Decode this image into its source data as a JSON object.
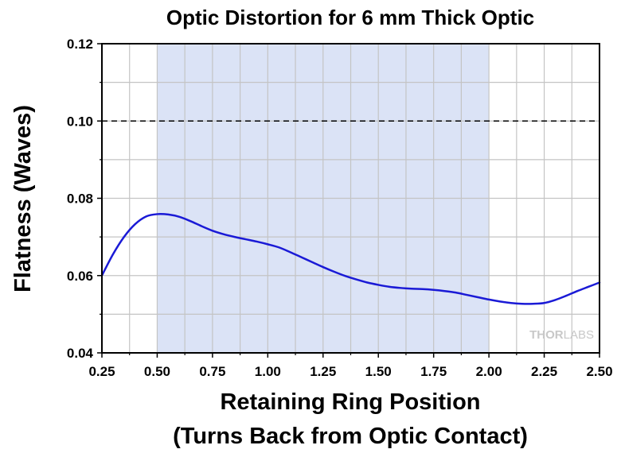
{
  "chart_data": {
    "type": "line",
    "title": "Optic Distortion for 6 mm Thick Optic",
    "xlabel_line1": "Retaining Ring Position",
    "xlabel_line2": "(Turns Back from Optic Contact)",
    "ylabel": "Flatness (Waves)",
    "xlim": [
      0.25,
      2.5
    ],
    "ylim": [
      0.04,
      0.12
    ],
    "x_ticks": [
      "0.25",
      "0.50",
      "0.75",
      "1.00",
      "1.25",
      "1.50",
      "1.75",
      "2.00",
      "2.25",
      "2.50"
    ],
    "y_ticks": [
      "0.04",
      "0.06",
      "0.08",
      "0.10",
      "0.12"
    ],
    "grid": true,
    "shaded_region": {
      "x_start": 0.5,
      "x_end": 2.0,
      "color": "#dbe3f6"
    },
    "reference_line": {
      "y": 0.1,
      "style": "dashed",
      "color": "#000000"
    },
    "series": [
      {
        "color": "#1a1ad6",
        "x": [
          0.25,
          0.3,
          0.35,
          0.4,
          0.45,
          0.5,
          0.55,
          0.6,
          0.65,
          0.7,
          0.75,
          0.8,
          0.85,
          0.9,
          0.95,
          1.0,
          1.05,
          1.1,
          1.15,
          1.2,
          1.25,
          1.3,
          1.35,
          1.4,
          1.45,
          1.5,
          1.55,
          1.6,
          1.65,
          1.7,
          1.75,
          1.8,
          1.85,
          1.9,
          1.95,
          2.0,
          2.05,
          2.1,
          2.15,
          2.2,
          2.25,
          2.3,
          2.35,
          2.4,
          2.45,
          2.5
        ],
        "y": [
          0.06,
          0.0655,
          0.07,
          0.0733,
          0.0753,
          0.0759,
          0.0758,
          0.0752,
          0.0741,
          0.0728,
          0.0716,
          0.0707,
          0.07,
          0.0694,
          0.0688,
          0.0681,
          0.0673,
          0.0661,
          0.0648,
          0.0635,
          0.0622,
          0.061,
          0.0599,
          0.059,
          0.0582,
          0.0576,
          0.0571,
          0.0568,
          0.0566,
          0.0565,
          0.0563,
          0.056,
          0.0556,
          0.055,
          0.0544,
          0.0538,
          0.0533,
          0.0529,
          0.0527,
          0.0527,
          0.0529,
          0.0537,
          0.0548,
          0.056,
          0.0571,
          0.0582
        ]
      }
    ]
  },
  "watermark": {
    "part1": "THOR",
    "part2": "LABS"
  }
}
